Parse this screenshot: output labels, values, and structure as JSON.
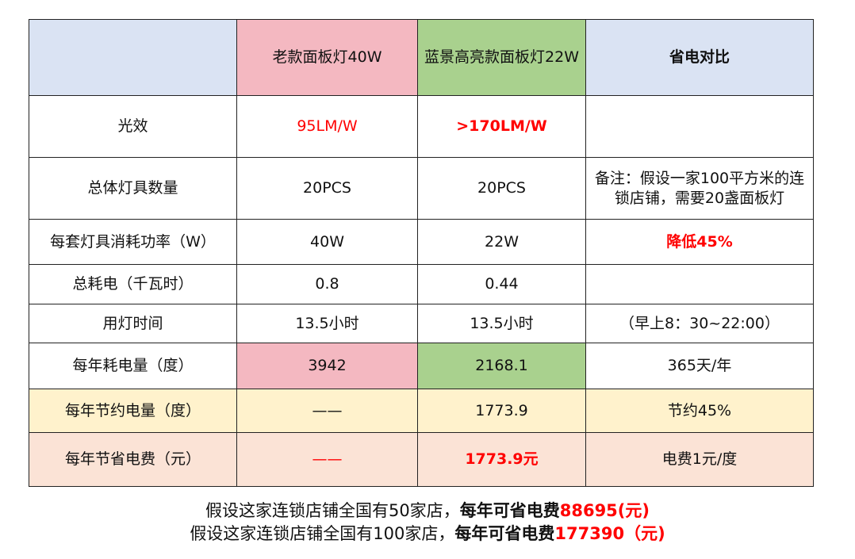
{
  "header": {
    "blank": "",
    "old": "老款面板灯40W",
    "new": "蓝景高亮款面板灯22W",
    "compare": "省电对比"
  },
  "rows": [
    {
      "label": "光效",
      "old": "95LM/W",
      "new": ">170LM/W",
      "note": ""
    },
    {
      "label": "总体灯具数量",
      "old": "20PCS",
      "new": "20PCS",
      "note": "备注：假设一家100平方米的连锁店铺，需要20盏面板灯"
    },
    {
      "label": "每套灯具消耗功率（W）",
      "old": "40W",
      "new": "22W",
      "note": "降低45%"
    },
    {
      "label": "总耗电（千瓦时）",
      "old": "0.8",
      "new": "0.44",
      "note": ""
    },
    {
      "label": "用灯时间",
      "old": "13.5小时",
      "new": "13.5小时",
      "note": "（早上8：30~22:00）"
    },
    {
      "label": "每年耗电量（度）",
      "old": "3942",
      "new": "2168.1",
      "note": "365天/年"
    },
    {
      "label": "每年节约电量（度）",
      "old": "——",
      "new": "1773.9",
      "note": "节约45%"
    },
    {
      "label": "每年节省电费（元）",
      "old": "——",
      "new": "1773.9元",
      "note": "电费1元/度"
    }
  ],
  "summary": [
    {
      "prefix": "假设这家连锁店铺全国有50家店，",
      "bold": "每年可省电费",
      "value": "88695(元)"
    },
    {
      "prefix": "假设这家连锁店铺全国有100家店，",
      "bold": "每年可省电费",
      "value": "177390（元)"
    }
  ],
  "colors": {
    "header_blue": "#dae3f3",
    "old_pink": "#f4b8c1",
    "new_green": "#a9d18e",
    "saving_yellow": "#fff2cc",
    "cost_peach": "#fbe3d6",
    "highlight_red": "#ff0000"
  }
}
